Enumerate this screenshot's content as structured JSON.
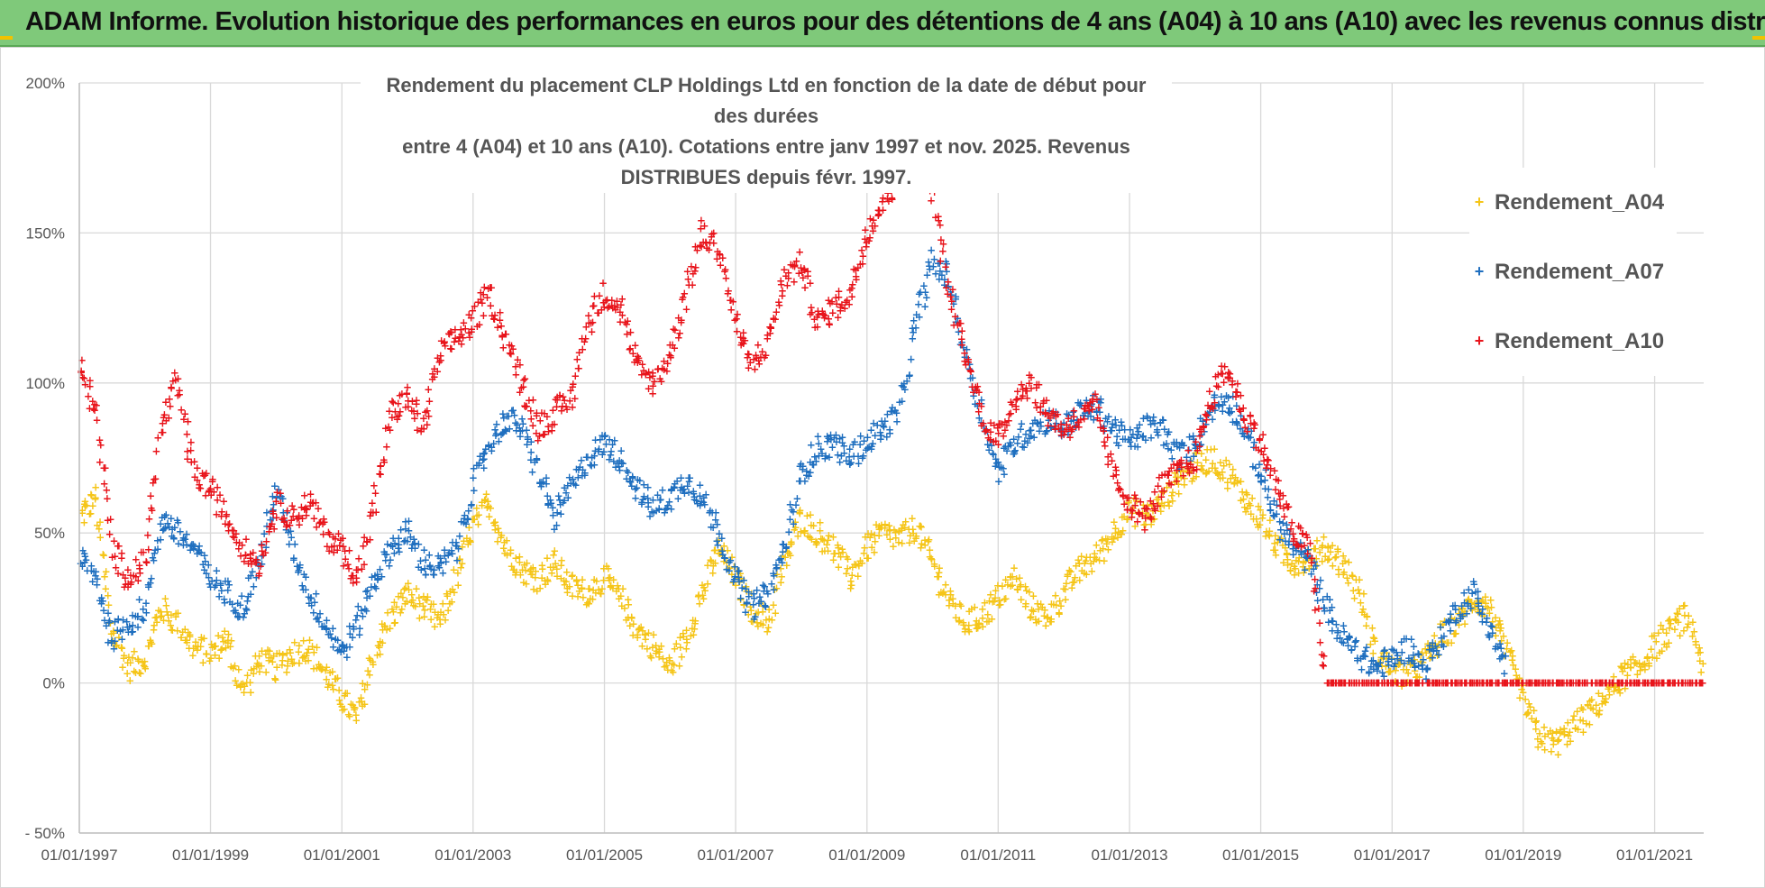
{
  "header": {
    "title": "ADAM Informe. Evolution historique des performances en euros pour des détentions de 4 ans (A04) à 10 ans (A10) avec les revenus connus distribués"
  },
  "chart_data": {
    "type": "scatter",
    "title_line1": "Rendement du placement CLP Holdings Ltd en fonction de la date de début pour des durées",
    "title_line2": "entre 4 (A04) et 10 ans (A10). Cotations entre janv 1997 et nov. 2025. Revenus DISTRIBUES depuis févr. 1997.",
    "marker": "+",
    "xlim": [
      "1997-01-01",
      "2021-10-01"
    ],
    "ylim": [
      -50,
      200
    ],
    "grid": true,
    "legend_position": "top-right",
    "x_tick_labels": [
      "01/01/1997",
      "01/01/1999",
      "01/01/2001",
      "01/01/2003",
      "01/01/2005",
      "01/01/2007",
      "01/01/2009",
      "01/01/2011",
      "01/01/2013",
      "01/01/2015",
      "01/01/2017",
      "01/01/2019",
      "01/01/2021"
    ],
    "y_ticks": [
      -50,
      0,
      50,
      100,
      150,
      200
    ],
    "y_tick_labels": [
      "- 50%",
      "0%",
      "50%",
      "100%",
      "150%",
      "200%"
    ],
    "series": [
      {
        "name": "Rendement_A04",
        "color": "#f5c518",
        "x": [
          "1997-01-01",
          "1997-04-01",
          "1997-07-01",
          "1997-10-01",
          "1998-01-01",
          "1998-04-01",
          "1998-07-01",
          "1998-10-01",
          "1999-01-01",
          "1999-04-01",
          "1999-07-01",
          "1999-10-01",
          "2000-01-01",
          "2000-04-01",
          "2000-07-01",
          "2000-10-01",
          "2001-01-01",
          "2001-04-01",
          "2001-07-01",
          "2001-10-01",
          "2002-01-01",
          "2002-04-01",
          "2002-07-01",
          "2002-10-01",
          "2003-01-01",
          "2003-04-01",
          "2003-07-01",
          "2003-10-01",
          "2004-01-01",
          "2004-04-01",
          "2004-07-01",
          "2004-10-01",
          "2005-01-01",
          "2005-04-01",
          "2005-07-01",
          "2005-10-01",
          "2006-01-01",
          "2006-04-01",
          "2006-07-01",
          "2006-10-01",
          "2007-01-01",
          "2007-04-01",
          "2007-07-01",
          "2007-10-01",
          "2008-01-01",
          "2008-04-01",
          "2008-07-01",
          "2008-10-01",
          "2009-01-01",
          "2009-04-01",
          "2009-07-01",
          "2009-10-01",
          "2010-01-01",
          "2010-04-01",
          "2010-07-01",
          "2010-10-01",
          "2011-01-01",
          "2011-04-01",
          "2011-07-01",
          "2011-10-01",
          "2012-01-01",
          "2012-04-01",
          "2012-07-01",
          "2012-10-01",
          "2013-01-01",
          "2013-04-01",
          "2013-07-01",
          "2013-10-01",
          "2014-01-01",
          "2014-04-01",
          "2014-07-01",
          "2014-10-01",
          "2015-01-01",
          "2015-04-01",
          "2015-07-01",
          "2015-10-01",
          "2016-01-01",
          "2016-04-01",
          "2016-07-01",
          "2016-10-01",
          "2017-01-01",
          "2017-04-01",
          "2017-07-01",
          "2017-10-01",
          "2018-01-01",
          "2018-04-01",
          "2018-07-01",
          "2018-10-01",
          "2019-01-01",
          "2019-04-01",
          "2019-07-01",
          "2019-10-01",
          "2020-01-01",
          "2020-04-01",
          "2020-07-01",
          "2020-10-01",
          "2021-01-01",
          "2021-04-01",
          "2021-07-01",
          "2021-10-01"
        ],
        "values": [
          55,
          62,
          18,
          5,
          8,
          25,
          20,
          12,
          10,
          15,
          -3,
          8,
          5,
          10,
          12,
          3,
          -5,
          -12,
          10,
          22,
          30,
          25,
          20,
          35,
          52,
          60,
          45,
          38,
          35,
          40,
          32,
          30,
          35,
          28,
          18,
          12,
          5,
          15,
          30,
          45,
          35,
          25,
          20,
          40,
          55,
          50,
          45,
          35,
          45,
          50,
          48,
          52,
          40,
          28,
          20,
          22,
          28,
          35,
          25,
          22,
          30,
          38,
          42,
          50,
          58,
          55,
          60,
          68,
          72,
          75,
          70,
          62,
          55,
          45,
          40,
          42,
          45,
          40,
          30,
          10,
          5,
          2,
          8,
          15,
          20,
          28,
          25,
          10,
          -5,
          -18,
          -20,
          -15,
          -10,
          -5,
          2,
          5,
          12,
          18,
          22,
          5
        ]
      },
      {
        "name": "Rendement_A07",
        "color": "#1f6fbf",
        "x": [
          "1997-01-01",
          "1997-04-01",
          "1997-07-01",
          "1997-10-01",
          "1998-01-01",
          "1998-04-01",
          "1998-07-01",
          "1998-10-01",
          "1999-01-01",
          "1999-04-01",
          "1999-07-01",
          "1999-10-01",
          "2000-01-01",
          "2000-04-01",
          "2000-07-01",
          "2000-10-01",
          "2001-01-01",
          "2001-04-01",
          "2001-07-01",
          "2001-10-01",
          "2002-01-01",
          "2002-04-01",
          "2002-07-01",
          "2002-10-01",
          "2003-01-01",
          "2003-04-01",
          "2003-07-01",
          "2003-10-01",
          "2004-01-01",
          "2004-04-01",
          "2004-07-01",
          "2004-10-01",
          "2005-01-01",
          "2005-04-01",
          "2005-07-01",
          "2005-10-01",
          "2006-01-01",
          "2006-04-01",
          "2006-07-01",
          "2006-10-01",
          "2007-01-01",
          "2007-04-01",
          "2007-07-01",
          "2007-10-01",
          "2008-01-01",
          "2008-04-01",
          "2008-07-01",
          "2008-10-01",
          "2009-01-01",
          "2009-04-01",
          "2009-07-01",
          "2009-10-01",
          "2010-01-01",
          "2010-04-01",
          "2010-07-01",
          "2010-10-01",
          "2011-01-01",
          "2011-04-01",
          "2011-07-01",
          "2011-10-01",
          "2012-01-01",
          "2012-04-01",
          "2012-07-01",
          "2012-10-01",
          "2013-01-01",
          "2013-04-01",
          "2013-07-01",
          "2013-10-01",
          "2014-01-01",
          "2014-04-01",
          "2014-07-01",
          "2014-10-01",
          "2015-01-01",
          "2015-04-01",
          "2015-07-01",
          "2015-10-01",
          "2016-01-01",
          "2016-04-01",
          "2016-07-01",
          "2016-10-01",
          "2017-01-01",
          "2017-04-01",
          "2017-07-01",
          "2017-10-01",
          "2018-01-01",
          "2018-04-01",
          "2018-07-01",
          "2018-10-01"
        ],
        "values": [
          42,
          35,
          15,
          20,
          25,
          55,
          50,
          45,
          35,
          30,
          25,
          40,
          65,
          45,
          30,
          20,
          10,
          20,
          35,
          45,
          50,
          40,
          38,
          45,
          65,
          80,
          88,
          85,
          70,
          55,
          65,
          75,
          80,
          75,
          65,
          58,
          62,
          68,
          62,
          50,
          35,
          25,
          30,
          45,
          70,
          78,
          80,
          75,
          80,
          85,
          90,
          120,
          140,
          135,
          110,
          90,
          70,
          80,
          85,
          88,
          85,
          90,
          92,
          85,
          80,
          85,
          85,
          75,
          80,
          92,
          95,
          85,
          70,
          55,
          45,
          40,
          25,
          15,
          10,
          5,
          8,
          12,
          5,
          15,
          25,
          30,
          18,
          5
        ]
      },
      {
        "name": "Rendement_A10",
        "color": "#e8141b",
        "x": [
          "1997-01-01",
          "1997-04-01",
          "1997-07-01",
          "1997-10-01",
          "1998-01-01",
          "1998-04-01",
          "1998-07-01",
          "1998-10-01",
          "1999-01-01",
          "1999-04-01",
          "1999-07-01",
          "1999-10-01",
          "2000-01-01",
          "2000-04-01",
          "2000-07-01",
          "2000-10-01",
          "2001-01-01",
          "2001-04-01",
          "2001-07-01",
          "2001-10-01",
          "2002-01-01",
          "2002-04-01",
          "2002-07-01",
          "2002-10-01",
          "2003-01-01",
          "2003-04-01",
          "2003-07-01",
          "2003-10-01",
          "2004-01-01",
          "2004-04-01",
          "2004-07-01",
          "2004-10-01",
          "2005-01-01",
          "2005-04-01",
          "2005-07-01",
          "2005-10-01",
          "2006-01-01",
          "2006-04-01",
          "2006-07-01",
          "2006-10-01",
          "2007-01-01",
          "2007-04-01",
          "2007-07-01",
          "2007-10-01",
          "2008-01-01",
          "2008-04-01",
          "2008-07-01",
          "2008-10-01",
          "2009-01-01",
          "2009-04-01",
          "2009-07-01",
          "2009-10-01",
          "2010-01-01",
          "2010-04-01",
          "2010-07-01",
          "2010-10-01",
          "2011-01-01",
          "2011-04-01",
          "2011-07-01",
          "2011-10-01",
          "2012-01-01",
          "2012-04-01",
          "2012-07-01",
          "2012-10-01",
          "2013-01-01",
          "2013-04-01",
          "2013-07-01",
          "2013-10-01",
          "2014-01-01",
          "2014-04-01",
          "2014-07-01",
          "2014-10-01",
          "2015-01-01",
          "2015-04-01",
          "2015-07-01",
          "2015-10-01",
          "2016-01-01",
          "2016-04-01",
          "2016-07-01",
          "2016-10-01",
          "2017-01-01",
          "2017-04-01",
          "2017-07-01",
          "2017-10-01",
          "2018-01-01",
          "2018-04-01",
          "2018-07-01",
          "2018-10-01",
          "2019-01-01",
          "2019-04-01",
          "2019-07-01",
          "2019-10-01",
          "2020-01-01",
          "2020-04-01",
          "2020-07-01",
          "2020-10-01",
          "2021-01-01",
          "2021-04-01",
          "2021-07-01",
          "2021-10-01"
        ],
        "values": [
          105,
          92,
          45,
          35,
          40,
          85,
          100,
          70,
          65,
          55,
          45,
          40,
          60,
          55,
          60,
          50,
          45,
          35,
          60,
          90,
          95,
          85,
          110,
          115,
          120,
          130,
          115,
          100,
          85,
          90,
          95,
          120,
          130,
          125,
          105,
          100,
          110,
          130,
          150,
          145,
          120,
          105,
          115,
          135,
          140,
          120,
          125,
          130,
          150,
          160,
          170,
          175,
          165,
          130,
          110,
          90,
          80,
          95,
          100,
          90,
          85,
          88,
          92,
          70,
          60,
          55,
          65,
          70,
          75,
          95,
          105,
          90,
          80,
          65,
          50,
          45,
          0,
          0,
          0,
          0,
          0,
          0,
          0,
          0,
          0,
          0,
          0,
          0,
          0,
          0,
          0,
          0,
          0,
          0,
          0,
          0,
          0,
          0,
          0,
          0
        ]
      }
    ]
  }
}
